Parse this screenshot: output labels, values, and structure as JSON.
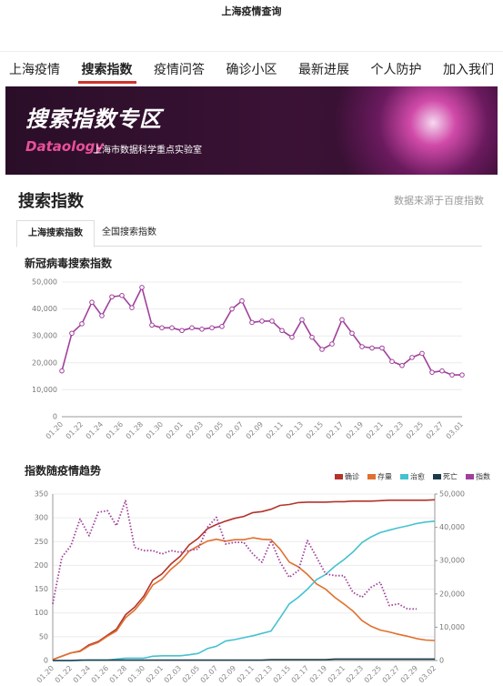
{
  "header": {
    "title": "上海疫情查询"
  },
  "nav": {
    "items": [
      "上海疫情",
      "搜索指数",
      "疫情问答",
      "确诊小区",
      "最新进展",
      "个人防护",
      "加入我们"
    ],
    "active": 1
  },
  "banner": {
    "title": "搜索指数专区",
    "logo": "Dataology",
    "subtitle": "上海市数据科学重点实验室"
  },
  "section": {
    "title": "搜索指数",
    "source": "数据来源于百度指数"
  },
  "tabs": {
    "items": [
      "上海搜索指数",
      "全国搜索指数"
    ],
    "active": 0
  },
  "chart_data": [
    {
      "type": "line",
      "title": "新冠病毒搜索指数",
      "grid": true,
      "markers": true,
      "color": "#a0409c",
      "categories": [
        "01.20",
        null,
        "01.22",
        null,
        "01.24",
        null,
        "01.26",
        null,
        "01.28",
        null,
        "01.30",
        null,
        "02.01",
        null,
        "02.03",
        null,
        "02.05",
        null,
        "02.07",
        null,
        "02.09",
        null,
        "02.11",
        null,
        "02.13",
        null,
        "02.15",
        null,
        "02.17",
        null,
        "02.19",
        null,
        "02.21",
        null,
        "02.23",
        null,
        "02.25",
        null,
        "02.27",
        null,
        "03.01"
      ],
      "values": [
        17000,
        31000,
        34500,
        42500,
        37500,
        44500,
        45000,
        40500,
        48000,
        34000,
        33000,
        33000,
        32000,
        33000,
        32500,
        33000,
        33500,
        40000,
        43000,
        35000,
        35500,
        35500,
        32000,
        29500,
        36000,
        29500,
        25000,
        27000,
        36000,
        31000,
        26000,
        25500,
        25500,
        20500,
        19000,
        22000,
        23500,
        16500,
        17000,
        15500,
        15500
      ],
      "ylim": [
        0,
        50000
      ],
      "yticks": [
        0,
        {
          "value": 10000,
          "label": "10,000"
        },
        {
          "value": 20000,
          "label": "20,000"
        },
        {
          "value": 30000,
          "label": "30,000"
        },
        {
          "value": 40000,
          "label": "40,000"
        },
        {
          "value": 50000,
          "label": "50,000"
        }
      ]
    },
    {
      "type": "line",
      "title": "指数随疫情趋势",
      "grid": true,
      "legend": "top-right",
      "categories": [
        "01.20",
        null,
        "01.22",
        null,
        "01.24",
        null,
        "01.26",
        null,
        "01.28",
        null,
        "01.30",
        null,
        "02.01",
        null,
        "02.03",
        null,
        "02.05",
        null,
        "02.07",
        null,
        "02.09",
        null,
        "02.11",
        null,
        "02.13",
        null,
        "02.15",
        null,
        "02.17",
        null,
        "02.19",
        null,
        "02.21",
        null,
        "02.23",
        null,
        "02.25",
        null,
        "02.27",
        null,
        "02.29",
        null,
        "03.02"
      ],
      "ylim": [
        0,
        350
      ],
      "yticks": [
        0,
        50,
        100,
        150,
        200,
        250,
        300,
        350
      ],
      "y2lim": [
        0,
        50000
      ],
      "y2ticks": [
        0,
        {
          "value": 10000,
          "label": "10,000"
        },
        {
          "value": 20000,
          "label": "20,000"
        },
        {
          "value": 30000,
          "label": "30,000"
        },
        {
          "value": 40000,
          "label": "40,000"
        },
        {
          "value": 50000,
          "label": "50,000"
        }
      ],
      "series": [
        {
          "name": "确诊",
          "color": "#b3342c",
          "values": [
            2,
            9,
            16,
            20,
            33,
            40,
            53,
            66,
            96,
            112,
            135,
            169,
            182,
            203,
            219,
            243,
            257,
            277,
            286,
            293,
            299,
            303,
            311,
            313,
            318,
            326,
            328,
            332,
            333,
            333,
            333,
            334,
            334,
            335,
            335,
            335,
            336,
            337,
            337,
            337,
            337,
            337,
            338
          ]
        },
        {
          "name": "存量",
          "color": "#e0702e",
          "values": [
            2,
            9,
            16,
            19,
            31,
            38,
            51,
            62,
            90,
            106,
            129,
            159,
            171,
            192,
            208,
            230,
            241,
            251,
            255,
            251,
            254,
            254,
            258,
            255,
            254,
            234,
            207,
            197,
            181,
            161,
            150,
            133,
            119,
            104,
            84,
            72,
            64,
            60,
            55,
            51,
            46,
            43,
            42
          ]
        },
        {
          "name": "治愈",
          "color": "#46c2cf",
          "values": [
            0,
            0,
            0,
            0,
            1,
            1,
            1,
            3,
            5,
            5,
            5,
            9,
            10,
            10,
            10,
            12,
            15,
            25,
            30,
            41,
            44,
            48,
            52,
            57,
            62,
            90,
            119,
            133,
            150,
            170,
            181,
            198,
            212,
            228,
            248,
            260,
            269,
            274,
            279,
            283,
            288,
            291,
            293
          ]
        },
        {
          "name": "死亡",
          "color": "#1d3a4a",
          "values": [
            0,
            0,
            0,
            1,
            1,
            1,
            1,
            1,
            1,
            1,
            1,
            1,
            1,
            1,
            1,
            1,
            1,
            1,
            1,
            1,
            1,
            1,
            1,
            1,
            2,
            2,
            2,
            2,
            2,
            2,
            2,
            3,
            3,
            3,
            3,
            3,
            3,
            3,
            3,
            3,
            3,
            3,
            3
          ]
        },
        {
          "name": "指数",
          "color": "#a0409c",
          "axis": "y2",
          "line_style": "dotted",
          "values": [
            17000,
            31000,
            34500,
            42500,
            37500,
            44500,
            45000,
            40500,
            48000,
            34000,
            33000,
            33000,
            32000,
            33000,
            32500,
            33000,
            33500,
            40000,
            43000,
            35000,
            35500,
            35500,
            32000,
            29500,
            36000,
            29500,
            25000,
            27000,
            36000,
            31000,
            26000,
            25500,
            25500,
            20500,
            19000,
            22000,
            23500,
            16500,
            17000,
            15500,
            15500,
            null,
            null
          ]
        }
      ]
    }
  ]
}
